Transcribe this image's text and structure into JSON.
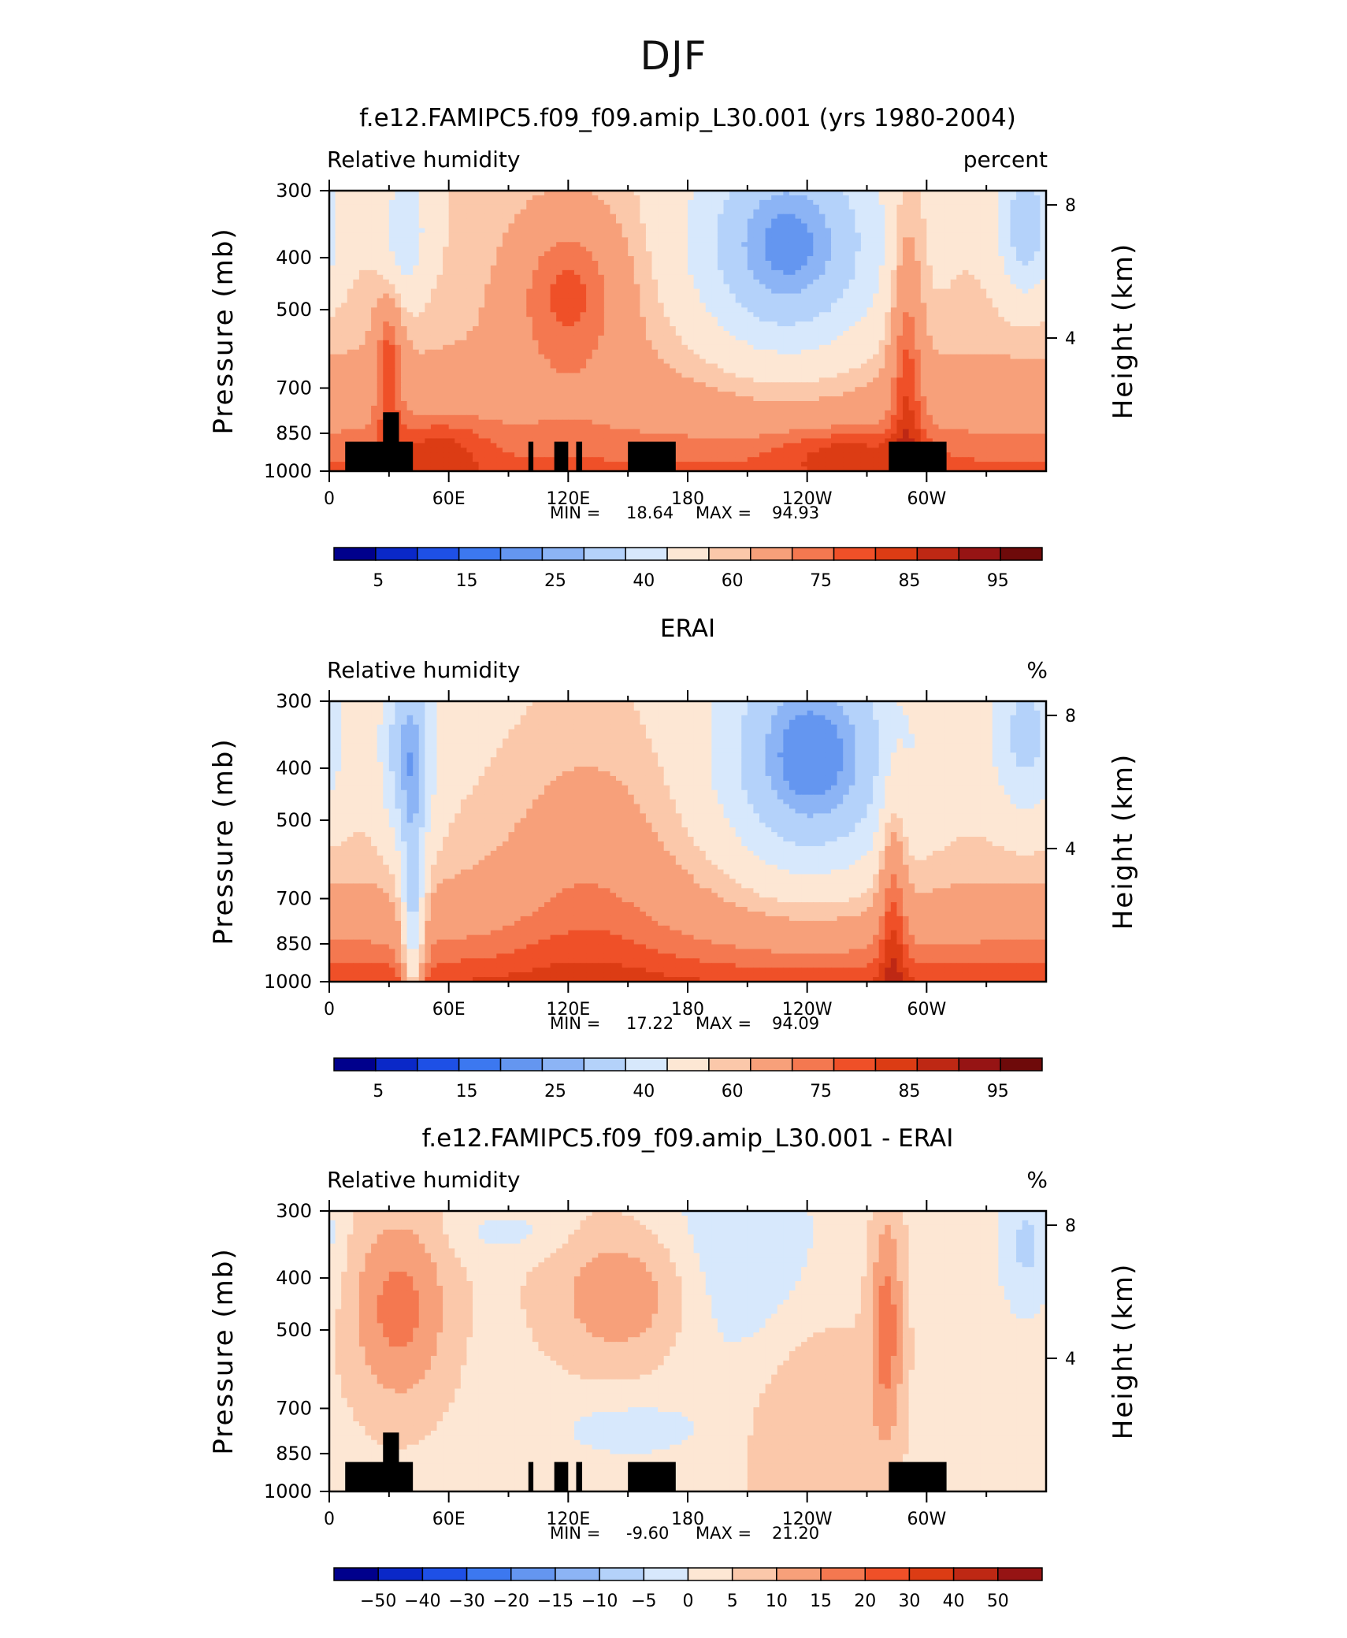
{
  "page_title": "DJF",
  "chart_data": [
    {
      "type": "heatmap",
      "title": "f.e12.FAMIPC5.f09_f09.amip_L30.001 (yrs 1980-2004)",
      "left_label": "Relative humidity",
      "right_label": "percent",
      "ylabel": "Pressure (mb)",
      "ylabel_right": "Height (km)",
      "x_ticks": [
        "0",
        "60E",
        "120E",
        "180",
        "120W",
        "60W"
      ],
      "y_ticks": [
        "300",
        "400",
        "500",
        "700",
        "850",
        "1000"
      ],
      "y_ticks_right": [
        "8",
        "4"
      ],
      "stats": {
        "min_label": "MIN =",
        "min": "18.64",
        "max_label": "MAX =",
        "max": "94.93"
      },
      "colorbar": {
        "labels": [
          "5",
          "15",
          "25",
          "40",
          "60",
          "75",
          "85",
          "95"
        ],
        "colors": [
          "#00008c",
          "#0a28c8",
          "#1e50e6",
          "#3c78f0",
          "#6496f0",
          "#8cb4f5",
          "#b4d2fa",
          "#d7e8fc",
          "#fde7d4",
          "#fbc8aa",
          "#f7a07a",
          "#f47850",
          "#ef5028",
          "#dc3c14",
          "#be2814",
          "#961414",
          "#6e0a0a"
        ]
      },
      "field": "model"
    },
    {
      "type": "heatmap",
      "title": "ERAI",
      "left_label": "Relative humidity",
      "right_label": "%",
      "ylabel": "Pressure (mb)",
      "ylabel_right": "Height (km)",
      "x_ticks": [
        "0",
        "60E",
        "120E",
        "180",
        "120W",
        "60W"
      ],
      "y_ticks": [
        "300",
        "400",
        "500",
        "700",
        "850",
        "1000"
      ],
      "y_ticks_right": [
        "8",
        "4"
      ],
      "stats": {
        "min_label": "MIN =",
        "min": "17.22",
        "max_label": "MAX =",
        "max": "94.09"
      },
      "colorbar": {
        "labels": [
          "5",
          "15",
          "25",
          "40",
          "60",
          "75",
          "85",
          "95"
        ],
        "colors": [
          "#00008c",
          "#0a28c8",
          "#1e50e6",
          "#3c78f0",
          "#6496f0",
          "#8cb4f5",
          "#b4d2fa",
          "#d7e8fc",
          "#fde7d4",
          "#fbc8aa",
          "#f7a07a",
          "#f47850",
          "#ef5028",
          "#dc3c14",
          "#be2814",
          "#961414",
          "#6e0a0a"
        ]
      },
      "field": "obs"
    },
    {
      "type": "heatmap",
      "title": "f.e12.FAMIPC5.f09_f09.amip_L30.001 - ERAI",
      "left_label": "Relative humidity",
      "right_label": "%",
      "ylabel": "Pressure (mb)",
      "ylabel_right": "Height (km)",
      "x_ticks": [
        "0",
        "60E",
        "120E",
        "180",
        "120W",
        "60W"
      ],
      "y_ticks": [
        "300",
        "400",
        "500",
        "700",
        "850",
        "1000"
      ],
      "y_ticks_right": [
        "8",
        "4"
      ],
      "stats": {
        "min_label": "MIN =",
        "min": "-9.60",
        "max_label": "MAX =",
        "max": "21.20"
      },
      "colorbar": {
        "labels": [
          "−50",
          "−40",
          "−30",
          "−20",
          "−15",
          "−10",
          "−5",
          "0",
          "5",
          "10",
          "15",
          "20",
          "30",
          "40",
          "50"
        ],
        "colors": [
          "#00008c",
          "#0a28c8",
          "#1e50e6",
          "#3c78f0",
          "#6496f0",
          "#8cb4f5",
          "#b4d2fa",
          "#d7e8fc",
          "#fde7d4",
          "#fbc8aa",
          "#f7a07a",
          "#f47850",
          "#ef5028",
          "#dc3c14",
          "#be2814",
          "#961414"
        ]
      },
      "field": "diff"
    }
  ]
}
